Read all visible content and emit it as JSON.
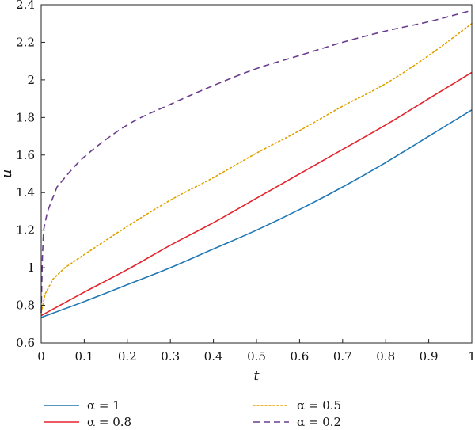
{
  "chart_data": {
    "type": "line",
    "title": "",
    "xlabel": "t",
    "ylabel": "u",
    "xlim": [
      0,
      1
    ],
    "ylim": [
      0.6,
      2.4
    ],
    "grid": false,
    "legend_position": "bottom",
    "xticks": [
      "0",
      "0.1",
      "0.2",
      "0.3",
      "0.4",
      "0.5",
      "0.6",
      "0.7",
      "0.8",
      "0.9",
      "1"
    ],
    "yticks": [
      "0.6",
      "0.8",
      "1",
      "1.2",
      "1.4",
      "1.6",
      "1.8",
      "2",
      "2.2",
      "2.4"
    ],
    "x": [
      0,
      0.1,
      0.2,
      0.3,
      0.4,
      0.5,
      0.6,
      0.7,
      0.8,
      0.9,
      1.0
    ],
    "series": [
      {
        "name": "α = 1",
        "color": "#1f77b4",
        "style": "solid",
        "values": [
          0.735,
          0.82,
          0.91,
          1.0,
          1.1,
          1.2,
          1.31,
          1.43,
          1.56,
          1.7,
          1.84
        ]
      },
      {
        "name": "α = 0.8",
        "color": "#e3242b",
        "style": "solid",
        "values": [
          0.745,
          0.87,
          0.99,
          1.12,
          1.24,
          1.37,
          1.5,
          1.63,
          1.76,
          1.9,
          2.04
        ]
      },
      {
        "name": "α = 0.5",
        "color": "#e0a100",
        "style": "dotted",
        "values": [
          0.76,
          1.07,
          1.22,
          1.36,
          1.48,
          1.61,
          1.73,
          1.86,
          1.98,
          2.13,
          2.3
        ]
      },
      {
        "name": "α = 0.2",
        "color": "#6a3d8f",
        "style": "dashed",
        "values": [
          0.76,
          1.59,
          1.76,
          1.87,
          1.97,
          2.06,
          2.13,
          2.2,
          2.26,
          2.31,
          2.37
        ]
      }
    ]
  }
}
